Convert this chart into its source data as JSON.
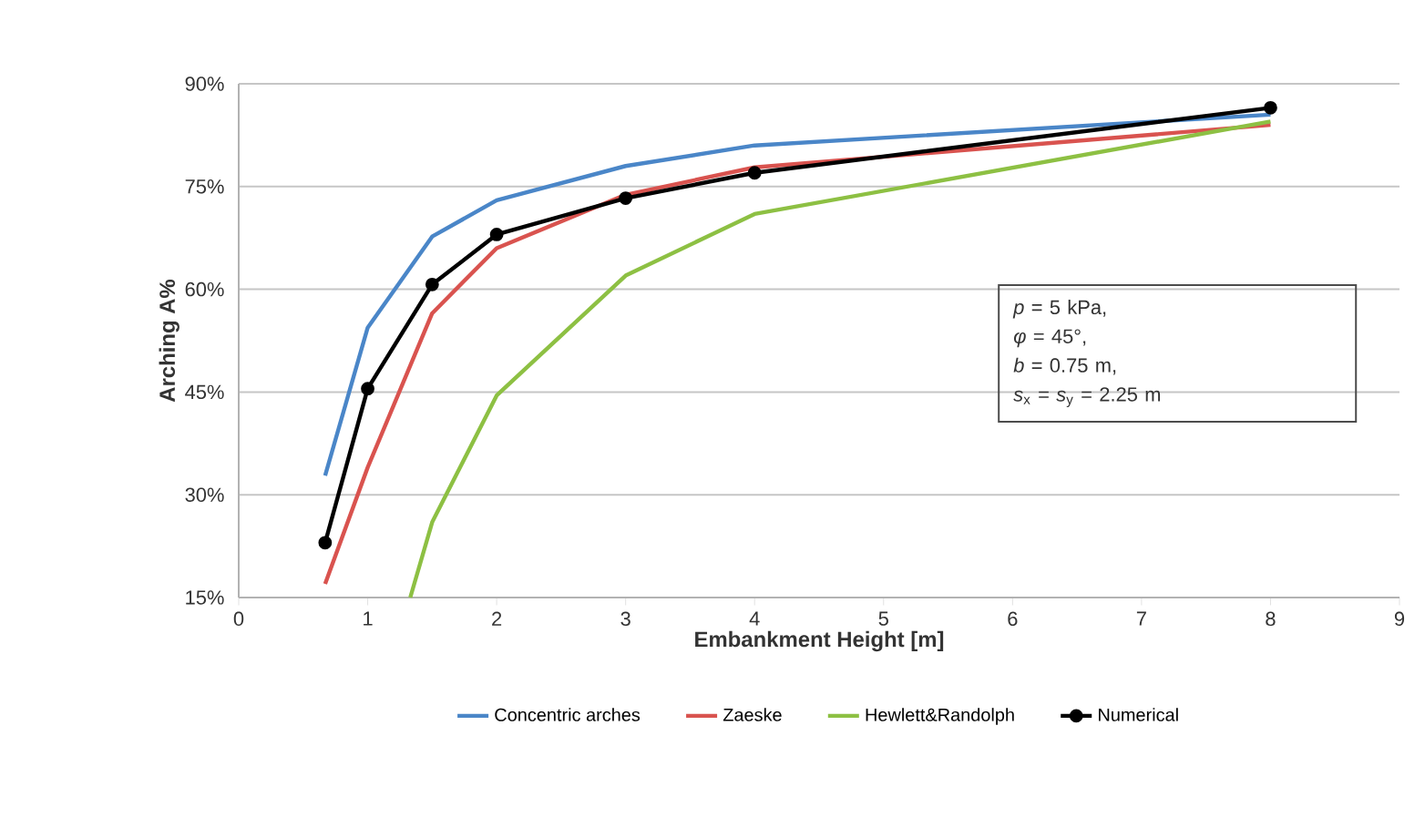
{
  "chart_data": {
    "type": "line",
    "xlabel": "Embankment Height [m]",
    "ylabel": "Arching A%",
    "xlim": [
      0,
      9
    ],
    "xticks": [
      0,
      1,
      2,
      3,
      4,
      5,
      6,
      7,
      8,
      9
    ],
    "ylim": [
      15,
      90
    ],
    "yticks": [
      {
        "value": 15,
        "label": "15%"
      },
      {
        "value": 30,
        "label": "30%"
      },
      {
        "value": 45,
        "label": "45%"
      },
      {
        "value": 60,
        "label": "60%"
      },
      {
        "value": 75,
        "label": "75%"
      },
      {
        "value": 90,
        "label": "90%"
      }
    ],
    "grid": "y",
    "legend": "bottom",
    "annotations": [
      "*p* = 5 kPa,",
      "*φ* = 45°,",
      "*b* = 0.75 m,",
      "*s*$_{x}$ = *s*$_{y}$ = 2.25 m"
    ],
    "series": [
      {
        "name": "Concentric arches",
        "color": "#4a86c8",
        "marker": "none",
        "x": [
          0.67,
          1,
          1.5,
          2,
          3,
          4,
          8
        ],
        "values": [
          32.8,
          54.4,
          67.7,
          73,
          78,
          81,
          85.5
        ]
      },
      {
        "name": "Zaeske",
        "color": "#d9534f",
        "marker": "none",
        "x": [
          0.67,
          1,
          1.5,
          2,
          3,
          4,
          8
        ],
        "values": [
          17,
          34,
          56.5,
          66,
          73.8,
          77.8,
          84
        ]
      },
      {
        "name": "Hewlett&Randolph",
        "color": "#8dc043",
        "marker": "none",
        "x": [
          1.33,
          1.5,
          2,
          3,
          4,
          8
        ],
        "values": [
          15,
          26,
          44.5,
          62,
          71,
          84.5
        ]
      },
      {
        "name": "Numerical",
        "color": "#000000",
        "marker": "circle",
        "x": [
          0.67,
          1,
          1.5,
          2,
          3,
          4,
          8
        ],
        "values": [
          23,
          45.5,
          60.7,
          68,
          73.3,
          77,
          86.5
        ]
      }
    ]
  }
}
